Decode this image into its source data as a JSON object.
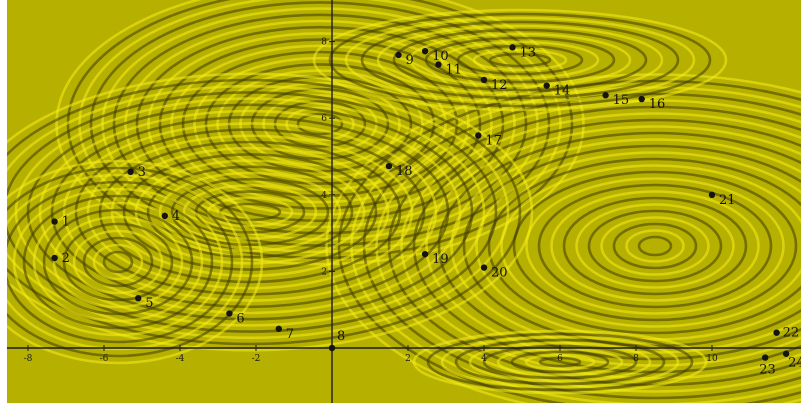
{
  "chart_data": {
    "type": "scatter",
    "title": "",
    "xlabel": "",
    "ylabel": "",
    "xlim": [
      -8.7,
      12.2
    ],
    "ylim": [
      -1.4,
      9.0
    ],
    "grid": false,
    "x_ticks": [
      -8,
      -6,
      -4,
      -2,
      2,
      4,
      6,
      8,
      10
    ],
    "y_ticks": [
      2,
      4,
      6,
      8
    ],
    "colors": {
      "background": "#b6b000",
      "ring_dark": "#3e3a00",
      "ring_bright": "#f6ee18",
      "points": "#141414",
      "axes": "#1c1c1c"
    },
    "points": [
      {
        "label": "1",
        "x": -7.3,
        "y": 3.3
      },
      {
        "label": "2",
        "x": -7.3,
        "y": 2.35
      },
      {
        "label": "3",
        "x": -5.3,
        "y": 4.6
      },
      {
        "label": "4",
        "x": -4.4,
        "y": 3.45
      },
      {
        "label": "5",
        "x": -5.1,
        "y": 1.3
      },
      {
        "label": "6",
        "x": -2.7,
        "y": 0.9
      },
      {
        "label": "7",
        "x": -1.4,
        "y": 0.5
      },
      {
        "label": "8",
        "x": 0.0,
        "y": 0.0
      },
      {
        "label": "9",
        "x": 1.75,
        "y": 7.65
      },
      {
        "label": "10",
        "x": 2.45,
        "y": 7.75
      },
      {
        "label": "11",
        "x": 2.8,
        "y": 7.4
      },
      {
        "label": "12",
        "x": 4.0,
        "y": 7.0
      },
      {
        "label": "13",
        "x": 4.75,
        "y": 7.85
      },
      {
        "label": "14",
        "x": 5.65,
        "y": 6.85
      },
      {
        "label": "15",
        "x": 7.2,
        "y": 6.6
      },
      {
        "label": "16",
        "x": 8.15,
        "y": 6.5
      },
      {
        "label": "17",
        "x": 3.85,
        "y": 5.55
      },
      {
        "label": "18",
        "x": 1.5,
        "y": 4.75
      },
      {
        "label": "19",
        "x": 2.45,
        "y": 2.45
      },
      {
        "label": "20",
        "x": 4.0,
        "y": 2.1
      },
      {
        "label": "21",
        "x": 10.0,
        "y": 4.0
      },
      {
        "label": "22",
        "x": 11.7,
        "y": 0.4
      },
      {
        "label": "23",
        "x": 11.4,
        "y": -0.25
      },
      {
        "label": "24",
        "x": 11.95,
        "y": -0.15
      }
    ]
  }
}
